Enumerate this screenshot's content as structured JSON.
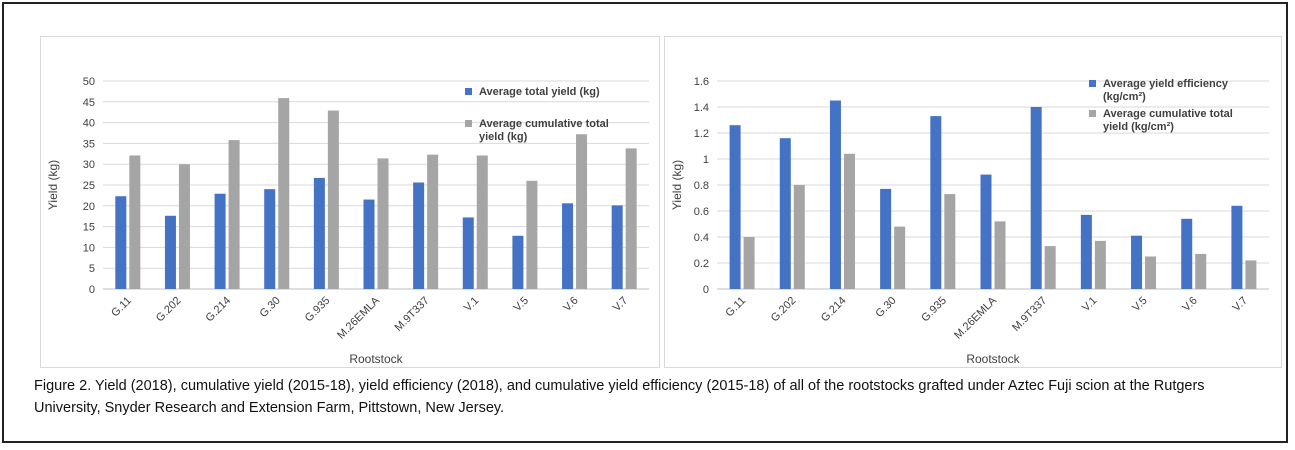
{
  "chart_data": [
    {
      "type": "bar",
      "categories": [
        "G.11",
        "G.202",
        "G.214",
        "G.30",
        "G.935",
        "M.26EMLA",
        "M.9T337",
        "V.1",
        "V.5",
        "V.6",
        "V.7"
      ],
      "series": [
        {
          "name": "Average total yield (kg)",
          "values": [
            22.3,
            17.6,
            22.9,
            24.0,
            26.7,
            21.5,
            25.6,
            17.2,
            12.8,
            20.6,
            20.1
          ]
        },
        {
          "name": "Average cumulative total yield (kg)",
          "values": [
            32.1,
            30.0,
            35.8,
            45.9,
            42.9,
            31.4,
            32.3,
            32.1,
            26.0,
            37.2,
            33.8
          ]
        }
      ],
      "title": "",
      "xlabel": "Rootstock",
      "ylabel": "Yield (kg)",
      "ylim": [
        0,
        50
      ],
      "yticks": [
        "0",
        "5",
        "10",
        "15",
        "20",
        "25",
        "30",
        "35",
        "40",
        "45",
        "50"
      ],
      "grid": true,
      "legend": "top-right",
      "legend_lines": [
        [
          "Average total yield (kg)"
        ],
        [
          "Average cumulative total",
          "yield (kg)"
        ]
      ],
      "colors": [
        "#4472c4",
        "#a5a5a5"
      ]
    },
    {
      "type": "bar",
      "categories": [
        "G.11",
        "G.202",
        "G.214",
        "G.30",
        "G.935",
        "M.26EMLA",
        "M.9T337",
        "V.1",
        "V.5",
        "V.6",
        "V.7"
      ],
      "series": [
        {
          "name": "Average yield efficiency (kg/cm2)",
          "values": [
            1.26,
            1.16,
            1.45,
            0.77,
            1.33,
            0.88,
            1.4,
            0.57,
            0.41,
            0.54,
            0.64
          ]
        },
        {
          "name": "Average cumulative total yield (kg/cm2)",
          "values": [
            0.4,
            0.8,
            1.04,
            0.48,
            0.73,
            0.52,
            0.33,
            0.37,
            0.25,
            0.27,
            0.22
          ]
        }
      ],
      "title": "",
      "xlabel": "Rootstock",
      "ylabel": "Yield (kg)",
      "ylim": [
        0,
        1.6
      ],
      "yticks": [
        "0",
        "0.2",
        "0.4",
        "0.6",
        "0.8",
        "1",
        "1.2",
        "1.4",
        "1.6"
      ],
      "grid": true,
      "legend": "top-right",
      "legend_lines": [
        [
          "Average yield efficiency",
          "(kg/cm²)"
        ],
        [
          "Average cumulative total",
          "yield (kg/cm²)"
        ]
      ],
      "colors": [
        "#4472c4",
        "#a5a5a5"
      ]
    }
  ],
  "caption": "Figure 2.  Yield (2018), cumulative yield (2015-18), yield efficiency (2018), and cumulative yield efficiency (2015-18) of all of the rootstocks grafted under Aztec Fuji scion at the Rutgers University, Snyder Research and Extension Farm, Pittstown, New Jersey."
}
